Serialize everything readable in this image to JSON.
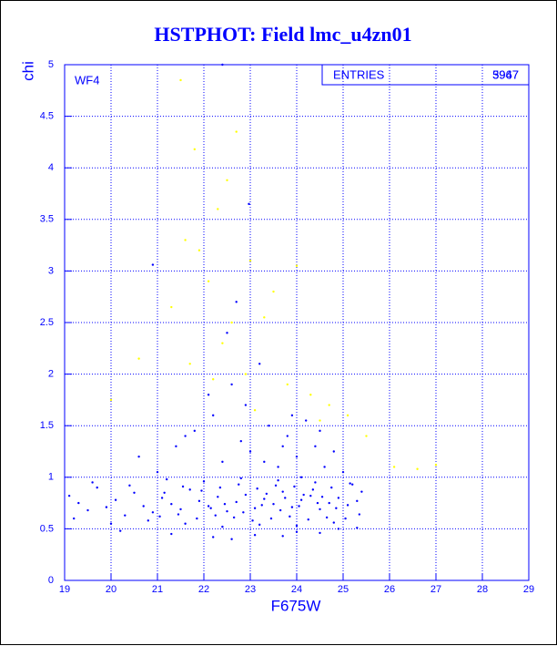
{
  "chart_data": {
    "type": "scatter",
    "title": "HSTPHOT: Field lmc_u4zn01",
    "x_label": "F675W",
    "y_label": "chi",
    "annotation": "WF4",
    "stats_label": "ENTRIES",
    "stats_values": [
      "5947",
      "3967"
    ],
    "xlim": [
      19,
      29
    ],
    "ylim": [
      0,
      5
    ],
    "xticks": [
      19,
      20,
      21,
      22,
      23,
      24,
      25,
      26,
      27,
      28,
      29
    ],
    "yticks": [
      0,
      0.5,
      1,
      1.5,
      2,
      2.5,
      3,
      3.5,
      4,
      4.5,
      5
    ],
    "grid": true,
    "series": [
      {
        "color": "#0000ff",
        "x": [
          19.1,
          19.3,
          19.5,
          19.7,
          19.9,
          20.1,
          20.3,
          20.5,
          20.7,
          20.9,
          21.1,
          21.3,
          21.5,
          21.7,
          21.9,
          22.1,
          22.3,
          22.5,
          22.7,
          22.9,
          23.1,
          23.3,
          23.5,
          23.7,
          23.9,
          24.1,
          24.3,
          24.5,
          24.7,
          24.9,
          25.1,
          25.3,
          19.2,
          19.6,
          20.0,
          20.4,
          20.8,
          21.2,
          21.6,
          22.0,
          22.4,
          22.8,
          23.2,
          23.6,
          24.0,
          24.4,
          24.8,
          25.2,
          21.05,
          21.45,
          21.85,
          22.25,
          22.65,
          23.05,
          23.45,
          23.85,
          24.25,
          24.65,
          25.05,
          25.35,
          21.15,
          21.55,
          21.95,
          22.35,
          22.75,
          23.15,
          23.55,
          23.95,
          24.35,
          24.75,
          25.15,
          25.4,
          22.15,
          22.45,
          22.85,
          23.25,
          23.65,
          24.05,
          24.45,
          24.85,
          23.35,
          23.75,
          24.15,
          24.55,
          20.6,
          21.0,
          21.4,
          21.8,
          22.2,
          22.4,
          22.6,
          22.8,
          23.0,
          23.2,
          23.4,
          23.6,
          23.8,
          24.0,
          24.2,
          24.4,
          24.6,
          24.8,
          25.0,
          22.1,
          22.5,
          22.9,
          23.3,
          23.7,
          24.1,
          24.5,
          21.6,
          20.9,
          22.7,
          23.9,
          20.2,
          21.3,
          22.2,
          23.1,
          24.0,
          24.9,
          25.3,
          22.6,
          23.7,
          24.5,
          22.97,
          22.4
        ],
        "values": [
          0.82,
          0.75,
          0.68,
          0.9,
          0.71,
          0.78,
          0.63,
          0.85,
          0.72,
          0.66,
          0.8,
          0.74,
          0.69,
          0.88,
          0.77,
          0.72,
          0.81,
          0.67,
          0.76,
          0.83,
          0.7,
          0.79,
          0.74,
          0.86,
          0.71,
          0.78,
          0.82,
          0.69,
          0.75,
          0.8,
          0.73,
          0.77,
          0.6,
          0.95,
          0.55,
          0.92,
          0.58,
          0.98,
          0.55,
          0.96,
          0.52,
          0.99,
          0.54,
          0.97,
          0.53,
          0.95,
          0.56,
          0.93,
          0.62,
          0.64,
          0.6,
          0.63,
          0.61,
          0.58,
          0.6,
          0.62,
          0.59,
          0.61,
          0.6,
          0.64,
          0.85,
          0.91,
          0.87,
          0.9,
          0.93,
          0.89,
          0.92,
          0.91,
          0.88,
          0.9,
          0.94,
          0.86,
          0.7,
          0.74,
          0.66,
          0.73,
          0.68,
          0.72,
          0.75,
          0.7,
          0.84,
          0.8,
          0.83,
          0.81,
          1.2,
          1.05,
          1.3,
          1.45,
          1.6,
          1.15,
          1.9,
          1.35,
          1.25,
          2.1,
          1.5,
          1.1,
          1.4,
          1.2,
          1.55,
          1.3,
          1.1,
          1.25,
          1.05,
          1.8,
          2.4,
          1.7,
          1.15,
          1.3,
          1.0,
          1.45,
          1.4,
          3.06,
          2.7,
          1.6,
          0.48,
          0.45,
          0.42,
          0.44,
          0.47,
          0.5,
          0.51,
          0.4,
          0.43,
          0.46,
          3.65,
          5.0
        ]
      },
      {
        "color": "#ffff00",
        "x": [
          21.5,
          21.8,
          22.3,
          22.5,
          22.7,
          23.0,
          22.1,
          21.3,
          21.9,
          22.6,
          23.3,
          23.5,
          24.0,
          24.3,
          24.7,
          25.1,
          25.5,
          26.1,
          26.6,
          27.0,
          20.6,
          20.0,
          21.6,
          22.9,
          23.8,
          24.5,
          22.4,
          21.7,
          22.2,
          23.1
        ],
        "values": [
          4.85,
          4.18,
          3.6,
          3.88,
          4.35,
          3.1,
          2.9,
          2.65,
          3.2,
          2.5,
          2.55,
          2.8,
          3.05,
          1.8,
          1.7,
          1.6,
          1.4,
          1.1,
          1.08,
          1.12,
          2.15,
          1.75,
          3.3,
          2.0,
          1.9,
          1.55,
          2.3,
          2.1,
          1.95,
          1.65
        ]
      }
    ]
  }
}
